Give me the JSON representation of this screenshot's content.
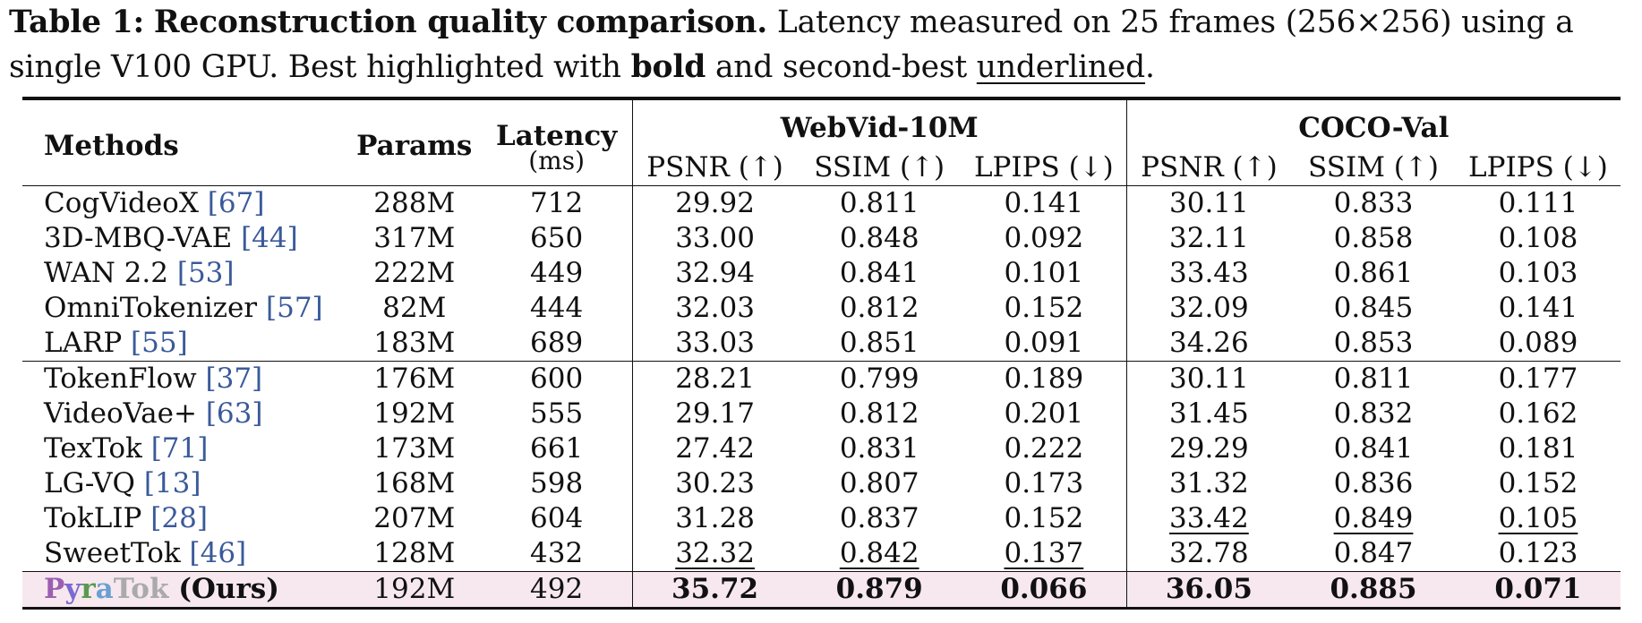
{
  "caption": {
    "label": "Table 1:",
    "title": "Reconstruction quality comparison.",
    "text_1": " Latency measured on 25 frames (256×256) using a single V100 GPU. Best highlighted with ",
    "bold_word": "bold",
    "text_2": " and second-best ",
    "underlined_word": "underlined",
    "text_3": "."
  },
  "header": {
    "methods": "Methods",
    "params": "Params",
    "latency": "Latency",
    "latency_unit": "(ms)",
    "group_1": "WebVid-10M",
    "group_2": "COCO-Val",
    "psnr": "PSNR (↑)",
    "ssim": "SSIM (↑)",
    "lpips": "LPIPS (↓)"
  },
  "rows_group1": [
    {
      "name": "CogVideoX",
      "ref": "[67]",
      "params": "288M",
      "latency": "712",
      "w_psnr": "29.92",
      "w_ssim": "0.811",
      "w_lpips": "0.141",
      "c_psnr": "30.11",
      "c_ssim": "0.833",
      "c_lpips": "0.111"
    },
    {
      "name": "3D-MBQ-VAE",
      "ref": "[44]",
      "params": "317M",
      "latency": "650",
      "w_psnr": "33.00",
      "w_ssim": "0.848",
      "w_lpips": "0.092",
      "c_psnr": "32.11",
      "c_ssim": "0.858",
      "c_lpips": "0.108"
    },
    {
      "name": "WAN 2.2",
      "ref": "[53]",
      "params": "222M",
      "latency": "449",
      "w_psnr": "32.94",
      "w_ssim": "0.841",
      "w_lpips": "0.101",
      "c_psnr": "33.43",
      "c_ssim": "0.861",
      "c_lpips": "0.103"
    },
    {
      "name": "OmniTokenizer",
      "ref": "[57]",
      "params": "82M",
      "latency": "444",
      "w_psnr": "32.03",
      "w_ssim": "0.812",
      "w_lpips": "0.152",
      "c_psnr": "32.09",
      "c_ssim": "0.845",
      "c_lpips": "0.141"
    },
    {
      "name": "LARP",
      "ref": "[55]",
      "params": "183M",
      "latency": "689",
      "w_psnr": "33.03",
      "w_ssim": "0.851",
      "w_lpips": "0.091",
      "c_psnr": "34.26",
      "c_ssim": "0.853",
      "c_lpips": "0.089"
    }
  ],
  "rows_group2": [
    {
      "name": "TokenFlow",
      "ref": "[37]",
      "params": "176M",
      "latency": "600",
      "w_psnr": "28.21",
      "w_ssim": "0.799",
      "w_lpips": "0.189",
      "c_psnr": "30.11",
      "c_ssim": "0.811",
      "c_lpips": "0.177"
    },
    {
      "name": "VideoVae+",
      "ref": "[63]",
      "params": "192M",
      "latency": "555",
      "w_psnr": "29.17",
      "w_ssim": "0.812",
      "w_lpips": "0.201",
      "c_psnr": "31.45",
      "c_ssim": "0.832",
      "c_lpips": "0.162"
    },
    {
      "name": "TexTok",
      "ref": "[71]",
      "params": "173M",
      "latency": "661",
      "w_psnr": "27.42",
      "w_ssim": "0.831",
      "w_lpips": "0.222",
      "c_psnr": "29.29",
      "c_ssim": "0.841",
      "c_lpips": "0.181"
    },
    {
      "name": "LG-VQ",
      "ref": "[13]",
      "params": "168M",
      "latency": "598",
      "w_psnr": "30.23",
      "w_ssim": "0.807",
      "w_lpips": "0.173",
      "c_psnr": "31.32",
      "c_ssim": "0.836",
      "c_lpips": "0.152"
    },
    {
      "name": "TokLIP",
      "ref": "[28]",
      "params": "207M",
      "latency": "604",
      "w_psnr": "31.28",
      "w_ssim": "0.837",
      "w_lpips": "0.152",
      "c_psnr": "33.42",
      "c_ssim": "0.849",
      "c_lpips": "0.105"
    },
    {
      "name": "SweetTok",
      "ref": "[46]",
      "params": "128M",
      "latency": "432",
      "w_psnr": "32.32",
      "w_ssim": "0.842",
      "w_lpips": "0.137",
      "c_psnr": "32.78",
      "c_ssim": "0.847",
      "c_lpips": "0.123"
    }
  ],
  "ours": {
    "logo_p": "P",
    "logo_y": "y",
    "logo_r": "r",
    "logo_a": "a",
    "logo_tok": "Tok",
    "suffix": " (Ours)",
    "params": "192M",
    "latency": "492",
    "w_psnr": "35.72",
    "w_ssim": "0.879",
    "w_lpips": "0.066",
    "c_psnr": "36.05",
    "c_ssim": "0.885",
    "c_lpips": "0.071"
  },
  "colors": {
    "ref_link": "#3a5a9a",
    "ours_highlight": "#f7e8f0"
  }
}
